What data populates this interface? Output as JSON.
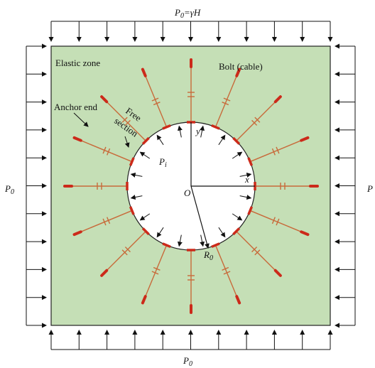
{
  "labels": {
    "top_load": "P",
    "top_load_sub": "0",
    "top_load_expr": "=γH",
    "bottom_load": "P",
    "bottom_load_sub": "0",
    "left_load": "P",
    "left_load_sub": "0",
    "right_load": "P",
    "elastic_zone": "Elastic zone",
    "bolt": "Bolt (cable)",
    "anchor_end": "Anchor end",
    "free_line1": "Free",
    "free_line2": "section",
    "inner_pressure": "P",
    "inner_pressure_sub": "i",
    "origin": "O",
    "x_axis": "x",
    "y_axis": "y",
    "radius": "R",
    "radius_sub": "0"
  },
  "colors": {
    "rock": "#c5dfb6",
    "border": "#222222",
    "bolt": "#c86a3a",
    "bolt_end": "#cc2a1a",
    "arrow": "#111111"
  },
  "bolts": {
    "count": 16
  },
  "boundary_arrows": {
    "per_side": 11
  }
}
